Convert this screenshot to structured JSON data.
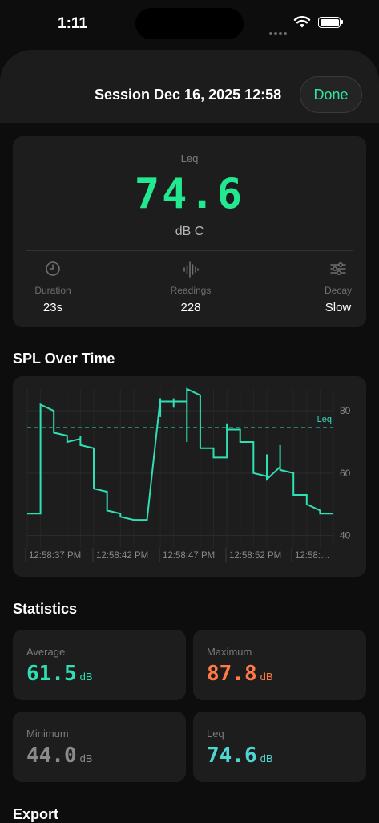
{
  "status_bar": {
    "time": "1:11"
  },
  "header": {
    "title": "Session Dec 16, 2025 12:58",
    "done_label": "Done"
  },
  "summary": {
    "leq_label": "Leq",
    "leq_value": "74.6",
    "leq_unit": "dB C",
    "duration_label": "Duration",
    "duration_value": "23s",
    "readings_label": "Readings",
    "readings_value": "228",
    "decay_label": "Decay",
    "decay_value": "Slow"
  },
  "chart_section_title": "SPL Over Time",
  "chart_data": {
    "type": "line",
    "title": "",
    "xlabel": "",
    "ylabel": "",
    "x_tick_labels": [
      "12:58:37 PM",
      "12:58:42 PM",
      "12:58:47 PM",
      "12:58:52 PM",
      "12:58:…"
    ],
    "y_ticks": [
      80,
      60,
      40
    ],
    "ylim": [
      36,
      87
    ],
    "xlim": [
      0,
      23
    ],
    "grid": true,
    "leq_line": {
      "label": "Leq",
      "value": 74.6,
      "color": "#3dd9c2"
    },
    "line_color": "#2ee0b4",
    "series": [
      {
        "values": [
          [
            0.0,
            47
          ],
          [
            1.0,
            47
          ],
          [
            1.0,
            82
          ],
          [
            2.0,
            80
          ],
          [
            2.0,
            73
          ],
          [
            3.0,
            72
          ],
          [
            3.0,
            70
          ],
          [
            4.0,
            71
          ],
          [
            4.0,
            72
          ],
          [
            4.0,
            69
          ],
          [
            5.0,
            68
          ],
          [
            5.0,
            55
          ],
          [
            6.0,
            54
          ],
          [
            6.0,
            48
          ],
          [
            7.0,
            47
          ],
          [
            7.0,
            46
          ],
          [
            8.0,
            45
          ],
          [
            8.0,
            45
          ],
          [
            9.0,
            45
          ],
          [
            9.0,
            45
          ],
          [
            10.0,
            84
          ],
          [
            10.0,
            78
          ],
          [
            10.0,
            83
          ],
          [
            11.0,
            83
          ],
          [
            11.0,
            81
          ],
          [
            11.0,
            84
          ],
          [
            11.0,
            83
          ],
          [
            12.0,
            83
          ],
          [
            12.0,
            70
          ],
          [
            12.0,
            87
          ],
          [
            13.0,
            85
          ],
          [
            13.0,
            68
          ],
          [
            14.0,
            68
          ],
          [
            14.0,
            66
          ],
          [
            14.0,
            65
          ],
          [
            15.0,
            65
          ],
          [
            15.0,
            76
          ],
          [
            15.0,
            74
          ],
          [
            16.0,
            74
          ],
          [
            16.0,
            70
          ],
          [
            17.0,
            70
          ],
          [
            17.0,
            60
          ],
          [
            18.0,
            59
          ],
          [
            18.0,
            66
          ],
          [
            18.0,
            58
          ],
          [
            19.0,
            62
          ],
          [
            19.0,
            69
          ],
          [
            19.0,
            61
          ],
          [
            20.0,
            60
          ],
          [
            20.0,
            53
          ],
          [
            21.0,
            53
          ],
          [
            21.0,
            50
          ],
          [
            22.0,
            48
          ],
          [
            22.0,
            47
          ],
          [
            23.0,
            47
          ]
        ]
      }
    ]
  },
  "statistics_title": "Statistics",
  "stats": [
    {
      "label": "Average",
      "value": "61.5",
      "unit": "dB",
      "color": "#2ee0b4"
    },
    {
      "label": "Maximum",
      "value": "87.8",
      "unit": "dB",
      "color": "#ff7a45"
    },
    {
      "label": "Minimum",
      "value": "44.0",
      "unit": "dB",
      "color": "#8a8a8a"
    },
    {
      "label": "Leq",
      "value": "74.6",
      "unit": "dB",
      "color": "#4fd6d0"
    }
  ],
  "export_title": "Export"
}
